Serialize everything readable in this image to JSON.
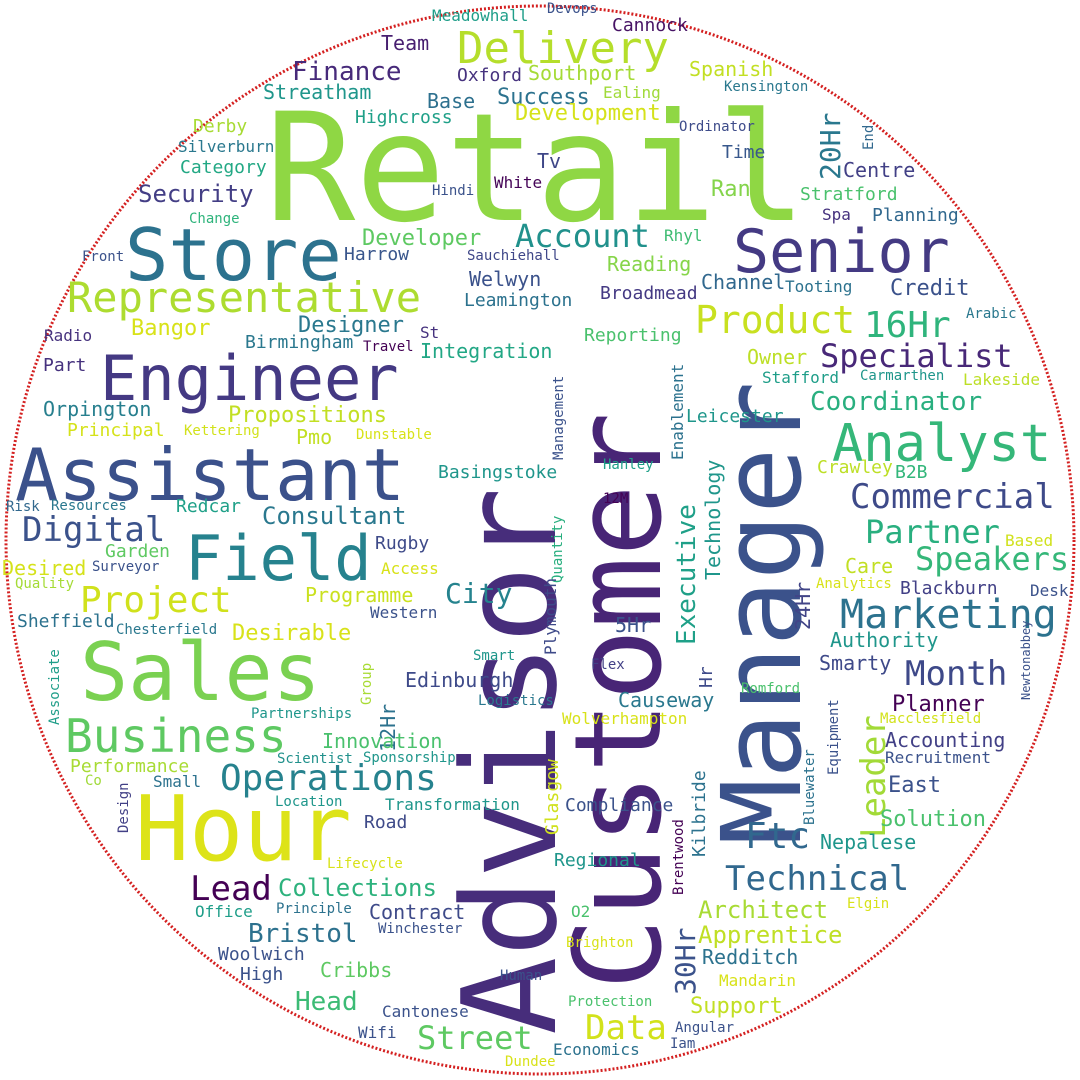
{
  "wordcloud": {
    "border_color": "#d42020",
    "background": "#ffffff",
    "palette": "viridis",
    "words": [
      {
        "text": "Retail",
        "color": "#8fd744"
      },
      {
        "text": "Advisor",
        "color": "#472d7b"
      },
      {
        "text": "Customer",
        "color": "#482576"
      },
      {
        "text": "Manager",
        "color": "#3b528b"
      },
      {
        "text": "Hour",
        "color": "#dde318"
      },
      {
        "text": "Store",
        "color": "#2c728e"
      },
      {
        "text": "Assistant",
        "color": "#3b518b"
      },
      {
        "text": "Senior",
        "color": "#443a83"
      },
      {
        "text": "Sales",
        "color": "#7ad151"
      },
      {
        "text": "Engineer",
        "color": "#443983"
      },
      {
        "text": "Field",
        "color": "#26828e"
      },
      {
        "text": "Representative",
        "color": "#addc30"
      },
      {
        "text": "Delivery",
        "color": "#b5de2b"
      },
      {
        "text": "Analyst",
        "color": "#35b779"
      },
      {
        "text": "Business",
        "color": "#5ec962"
      },
      {
        "text": "Marketing",
        "color": "#2c728e"
      },
      {
        "text": "Operations",
        "color": "#26828e"
      },
      {
        "text": "Commercial",
        "color": "#3e4a89"
      },
      {
        "text": "Digital",
        "color": "#3b528b"
      },
      {
        "text": "Project",
        "color": "#d0e11c"
      },
      {
        "text": "Account",
        "color": "#21918c"
      },
      {
        "text": "Specialist",
        "color": "#482878"
      },
      {
        "text": "Product",
        "color": "#c8e020"
      },
      {
        "text": "16Hr",
        "color": "#2fb47c"
      },
      {
        "text": "Technical",
        "color": "#31688e"
      },
      {
        "text": "Partner",
        "color": "#29af7f"
      },
      {
        "text": "Speakers",
        "color": "#35b779"
      },
      {
        "text": "Month",
        "color": "#3e4989"
      },
      {
        "text": "Ftc",
        "color": "#31688e"
      },
      {
        "text": "Leader",
        "color": "#a2da37"
      },
      {
        "text": "Lead",
        "color": "#440154"
      },
      {
        "text": "Data",
        "color": "#d2e21b"
      },
      {
        "text": "Street",
        "color": "#5ec962"
      },
      {
        "text": "Coordinator",
        "color": "#29af7f"
      },
      {
        "text": "Consultant",
        "color": "#2a788e"
      },
      {
        "text": "Executive",
        "color": "#1fa088"
      },
      {
        "text": "Finance",
        "color": "#472a7a"
      },
      {
        "text": "Security",
        "color": "#433e85"
      },
      {
        "text": "Collections",
        "color": "#2db27d"
      },
      {
        "text": "Architect",
        "color": "#a8db34"
      },
      {
        "text": "Apprentice",
        "color": "#c0df25"
      },
      {
        "text": "City",
        "color": "#25838e"
      },
      {
        "text": "Head",
        "color": "#3cbb75"
      },
      {
        "text": "Bristol",
        "color": "#2d718e"
      },
      {
        "text": "Success",
        "color": "#2c728e"
      },
      {
        "text": "Development",
        "color": "#d5e21a"
      },
      {
        "text": "Desirable",
        "color": "#d8e219"
      },
      {
        "text": "Programme",
        "color": "#cae11f"
      },
      {
        "text": "Propositions",
        "color": "#c2df23"
      },
      {
        "text": "Integration",
        "color": "#22a785"
      },
      {
        "text": "Designer",
        "color": "#2a788e"
      },
      {
        "text": "Developer",
        "color": "#5ec962"
      },
      {
        "text": "Southport",
        "color": "#a5db36"
      },
      {
        "text": "Streatham",
        "color": "#1f968b"
      },
      {
        "text": "Team",
        "color": "#481f70"
      },
      {
        "text": "Oxford",
        "color": "#46327e"
      },
      {
        "text": "Base",
        "color": "#2d708e"
      },
      {
        "text": "Spanish",
        "color": "#c2df23"
      },
      {
        "text": "Cannock",
        "color": "#471365"
      },
      {
        "text": "Meadowhall",
        "color": "#1f9e89"
      },
      {
        "text": "Devops",
        "color": "#3b528b"
      },
      {
        "text": "Ealing",
        "color": "#a0da39"
      },
      {
        "text": "Kensington",
        "color": "#2a788e"
      },
      {
        "text": "Ordinator",
        "color": "#3e4c8a"
      },
      {
        "text": "Time",
        "color": "#38588c"
      },
      {
        "text": "End",
        "color": "#31688e"
      },
      {
        "text": "20Hr",
        "color": "#2a788e"
      },
      {
        "text": "Centre",
        "color": "#424086"
      },
      {
        "text": "Stratford",
        "color": "#4ac16d"
      },
      {
        "text": "Spa",
        "color": "#46327e"
      },
      {
        "text": "Planning",
        "color": "#31688e"
      },
      {
        "text": "Highcross",
        "color": "#1fa088"
      },
      {
        "text": "Derby",
        "color": "#a8db34"
      },
      {
        "text": "Silverburn",
        "color": "#2a788e"
      },
      {
        "text": "Category",
        "color": "#22a884"
      },
      {
        "text": "Tv",
        "color": "#3f4788"
      },
      {
        "text": "Hindi",
        "color": "#3b528b"
      },
      {
        "text": "White",
        "color": "#450457"
      },
      {
        "text": "Ran",
        "color": "#84d44b"
      },
      {
        "text": "Change",
        "color": "#2fb47c"
      },
      {
        "text": "Front",
        "color": "#3b528b"
      },
      {
        "text": "Harrow",
        "color": "#39568c"
      },
      {
        "text": "Sauchiehall",
        "color": "#3f4788"
      },
      {
        "text": "Rhyl",
        "color": "#3fbc73"
      },
      {
        "text": "Welwyn",
        "color": "#3b528b"
      },
      {
        "text": "Reading",
        "color": "#86d549"
      },
      {
        "text": "Leamington",
        "color": "#2c728e"
      },
      {
        "text": "Channel",
        "color": "#31688e"
      },
      {
        "text": "Broadmead",
        "color": "#443983"
      },
      {
        "text": "Tooting",
        "color": "#2c728e"
      },
      {
        "text": "Credit",
        "color": "#3b528b"
      },
      {
        "text": "Arabic",
        "color": "#2a788e"
      },
      {
        "text": "Bangor",
        "color": "#d8e219"
      },
      {
        "text": "Radio",
        "color": "#46327e"
      },
      {
        "text": "Part",
        "color": "#46327e"
      },
      {
        "text": "Birmingham",
        "color": "#2a788e"
      },
      {
        "text": "Travel",
        "color": "#440154"
      },
      {
        "text": "St",
        "color": "#46327e"
      },
      {
        "text": "Reporting",
        "color": "#4ac16d"
      },
      {
        "text": "Owner",
        "color": "#bddf26"
      },
      {
        "text": "Stafford",
        "color": "#1f9e89"
      },
      {
        "text": "Carmarthen",
        "color": "#1f968b"
      },
      {
        "text": "Lakeside",
        "color": "#bddf26"
      },
      {
        "text": "Orpington",
        "color": "#277f8e"
      },
      {
        "text": "Principal",
        "color": "#d5e21a"
      },
      {
        "text": "Kettering",
        "color": "#d2e21b"
      },
      {
        "text": "Pmo",
        "color": "#c2df23"
      },
      {
        "text": "Dunstable",
        "color": "#d8e219"
      },
      {
        "text": "Management",
        "color": "#3b528b"
      },
      {
        "text": "Enablement",
        "color": "#2c728e"
      },
      {
        "text": "Leicester",
        "color": "#1f968b"
      },
      {
        "text": "Technology",
        "color": "#1f968b"
      },
      {
        "text": "Hanley",
        "color": "#1fa088"
      },
      {
        "text": "Crawley",
        "color": "#bddf26"
      },
      {
        "text": "B2B",
        "color": "#32b67a"
      },
      {
        "text": "Basingstoke",
        "color": "#1f968b"
      },
      {
        "text": "12M",
        "color": "#440154"
      },
      {
        "text": "Risk",
        "color": "#31688e"
      },
      {
        "text": "Resources",
        "color": "#2a788e"
      },
      {
        "text": "Redcar",
        "color": "#1fa088"
      },
      {
        "text": "Garden",
        "color": "#5ec962"
      },
      {
        "text": "Surveyor",
        "color": "#3b528b"
      },
      {
        "text": "Desired",
        "color": "#d5e21a"
      },
      {
        "text": "Quality",
        "color": "#a5db36"
      },
      {
        "text": "Rugby",
        "color": "#3e4a89"
      },
      {
        "text": "Access",
        "color": "#d8e219"
      },
      {
        "text": "Quantity",
        "color": "#29af7f"
      },
      {
        "text": "Care",
        "color": "#c2df23"
      },
      {
        "text": "Based",
        "color": "#d0e11c"
      },
      {
        "text": "Analytics",
        "color": "#d8e219"
      },
      {
        "text": "Blackburn",
        "color": "#424086"
      },
      {
        "text": "Desk",
        "color": "#3b528b"
      },
      {
        "text": "Sheffield",
        "color": "#2c728e"
      },
      {
        "text": "Chesterfield",
        "color": "#2a788e"
      },
      {
        "text": "Western",
        "color": "#3b528b"
      },
      {
        "text": "Plymouth",
        "color": "#3e4a89"
      },
      {
        "text": "5Hr",
        "color": "#3b528b"
      },
      {
        "text": "24Hr",
        "color": "#414487"
      },
      {
        "text": "Authority",
        "color": "#1f968b"
      },
      {
        "text": "Smarty",
        "color": "#3e4989"
      },
      {
        "text": "Newtonabbey",
        "color": "#3b528b"
      },
      {
        "text": "Associate",
        "color": "#1f9e89"
      },
      {
        "text": "Group",
        "color": "#a8db34"
      },
      {
        "text": "Smart",
        "color": "#1f968b"
      },
      {
        "text": "Flex",
        "color": "#424086"
      },
      {
        "text": "12Hr",
        "color": "#2c728e"
      },
      {
        "text": "Edinburgh",
        "color": "#3e4a89"
      },
      {
        "text": "Hr",
        "color": "#3e4a89"
      },
      {
        "text": "Causeway",
        "color": "#2a788e"
      },
      {
        "text": "Romford",
        "color": "#4ac16d"
      },
      {
        "text": "Planner",
        "color": "#440154"
      },
      {
        "text": "Macclesfield",
        "color": "#d2e21b"
      },
      {
        "text": "Partnerships",
        "color": "#1f968b"
      },
      {
        "text": "Logistics",
        "color": "#2a788e"
      },
      {
        "text": "Innovation",
        "color": "#4ac16d"
      },
      {
        "text": "Wolverhampton",
        "color": "#d8e219"
      },
      {
        "text": "Equipment",
        "color": "#3b528b"
      },
      {
        "text": "Accounting",
        "color": "#424086"
      },
      {
        "text": "Recruitment",
        "color": "#3b528b"
      },
      {
        "text": "Performance",
        "color": "#a8db34"
      },
      {
        "text": "Sponsorship",
        "color": "#1f968b"
      },
      {
        "text": "Scientist",
        "color": "#21918c"
      },
      {
        "text": "Co",
        "color": "#a0da39"
      },
      {
        "text": "Small",
        "color": "#2c728e"
      },
      {
        "text": "East",
        "color": "#3b528b"
      },
      {
        "text": "Bluewater",
        "color": "#2c728e"
      },
      {
        "text": "Glasgow",
        "color": "#d0e11c"
      },
      {
        "text": "Kilbride",
        "color": "#2c728e"
      },
      {
        "text": "Location",
        "color": "#1f968b"
      },
      {
        "text": "Design",
        "color": "#424086"
      },
      {
        "text": "Transformation",
        "color": "#1f968b"
      },
      {
        "text": "Compliance",
        "color": "#3b528b"
      },
      {
        "text": "Solution",
        "color": "#4ac16d"
      },
      {
        "text": "Brentwood",
        "color": "#440154"
      },
      {
        "text": "Road",
        "color": "#3e4a89"
      },
      {
        "text": "Lifecycle",
        "color": "#d8e219"
      },
      {
        "text": "Regional",
        "color": "#1f968b"
      },
      {
        "text": "Nepalese",
        "color": "#1f968b"
      },
      {
        "text": "Office",
        "color": "#1f9e89"
      },
      {
        "text": "Principle",
        "color": "#2c728e"
      },
      {
        "text": "Contract",
        "color": "#3e4a89"
      },
      {
        "text": "Elgin",
        "color": "#d8e219"
      },
      {
        "text": "Winchester",
        "color": "#3b528b"
      },
      {
        "text": "O2",
        "color": "#4ac16d"
      },
      {
        "text": "30Hr",
        "color": "#3b528b"
      },
      {
        "text": "Woolwich",
        "color": "#3b528b"
      },
      {
        "text": "Brighton",
        "color": "#d8e219"
      },
      {
        "text": "Redditch",
        "color": "#2c728e"
      },
      {
        "text": "High",
        "color": "#3b528b"
      },
      {
        "text": "Cribbs",
        "color": "#5ec962"
      },
      {
        "text": "Human",
        "color": "#3b528b"
      },
      {
        "text": "Mandarin",
        "color": "#d8e219"
      },
      {
        "text": "Support",
        "color": "#c2df23"
      },
      {
        "text": "Cantonese",
        "color": "#3b528b"
      },
      {
        "text": "Protection",
        "color": "#4ac16d"
      },
      {
        "text": "Angular",
        "color": "#3b528b"
      },
      {
        "text": "Wifi",
        "color": "#3b528b"
      },
      {
        "text": "Iam",
        "color": "#3b528b"
      },
      {
        "text": "Economics",
        "color": "#2c728e"
      },
      {
        "text": "Dundee",
        "color": "#d8e219"
      }
    ]
  }
}
